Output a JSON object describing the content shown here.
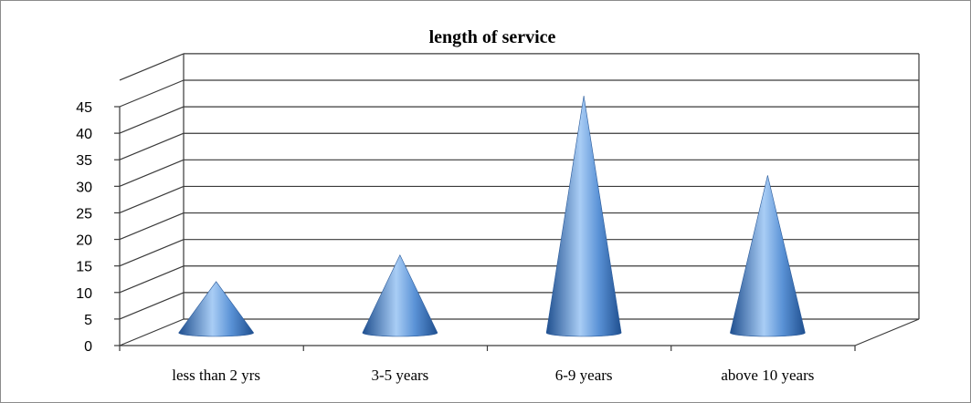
{
  "chart_data": {
    "type": "bar",
    "style": "3d-cone",
    "title": "length of service",
    "xlabel": "",
    "ylabel": "",
    "categories": [
      "less than 2 yrs",
      "3-5 years",
      "6-9 years",
      "above 10 years"
    ],
    "values": [
      10,
      15,
      45,
      30
    ],
    "ylim": [
      0,
      45
    ],
    "ytick_step": 5,
    "grid": true,
    "legend": "none",
    "colors": {
      "cone_dark": "#1f4f8f",
      "cone_mid": "#5a92d6",
      "cone_light": "#a9cdf5",
      "gridline": "#3a3a3a",
      "frame": "#8c8c8c"
    }
  }
}
